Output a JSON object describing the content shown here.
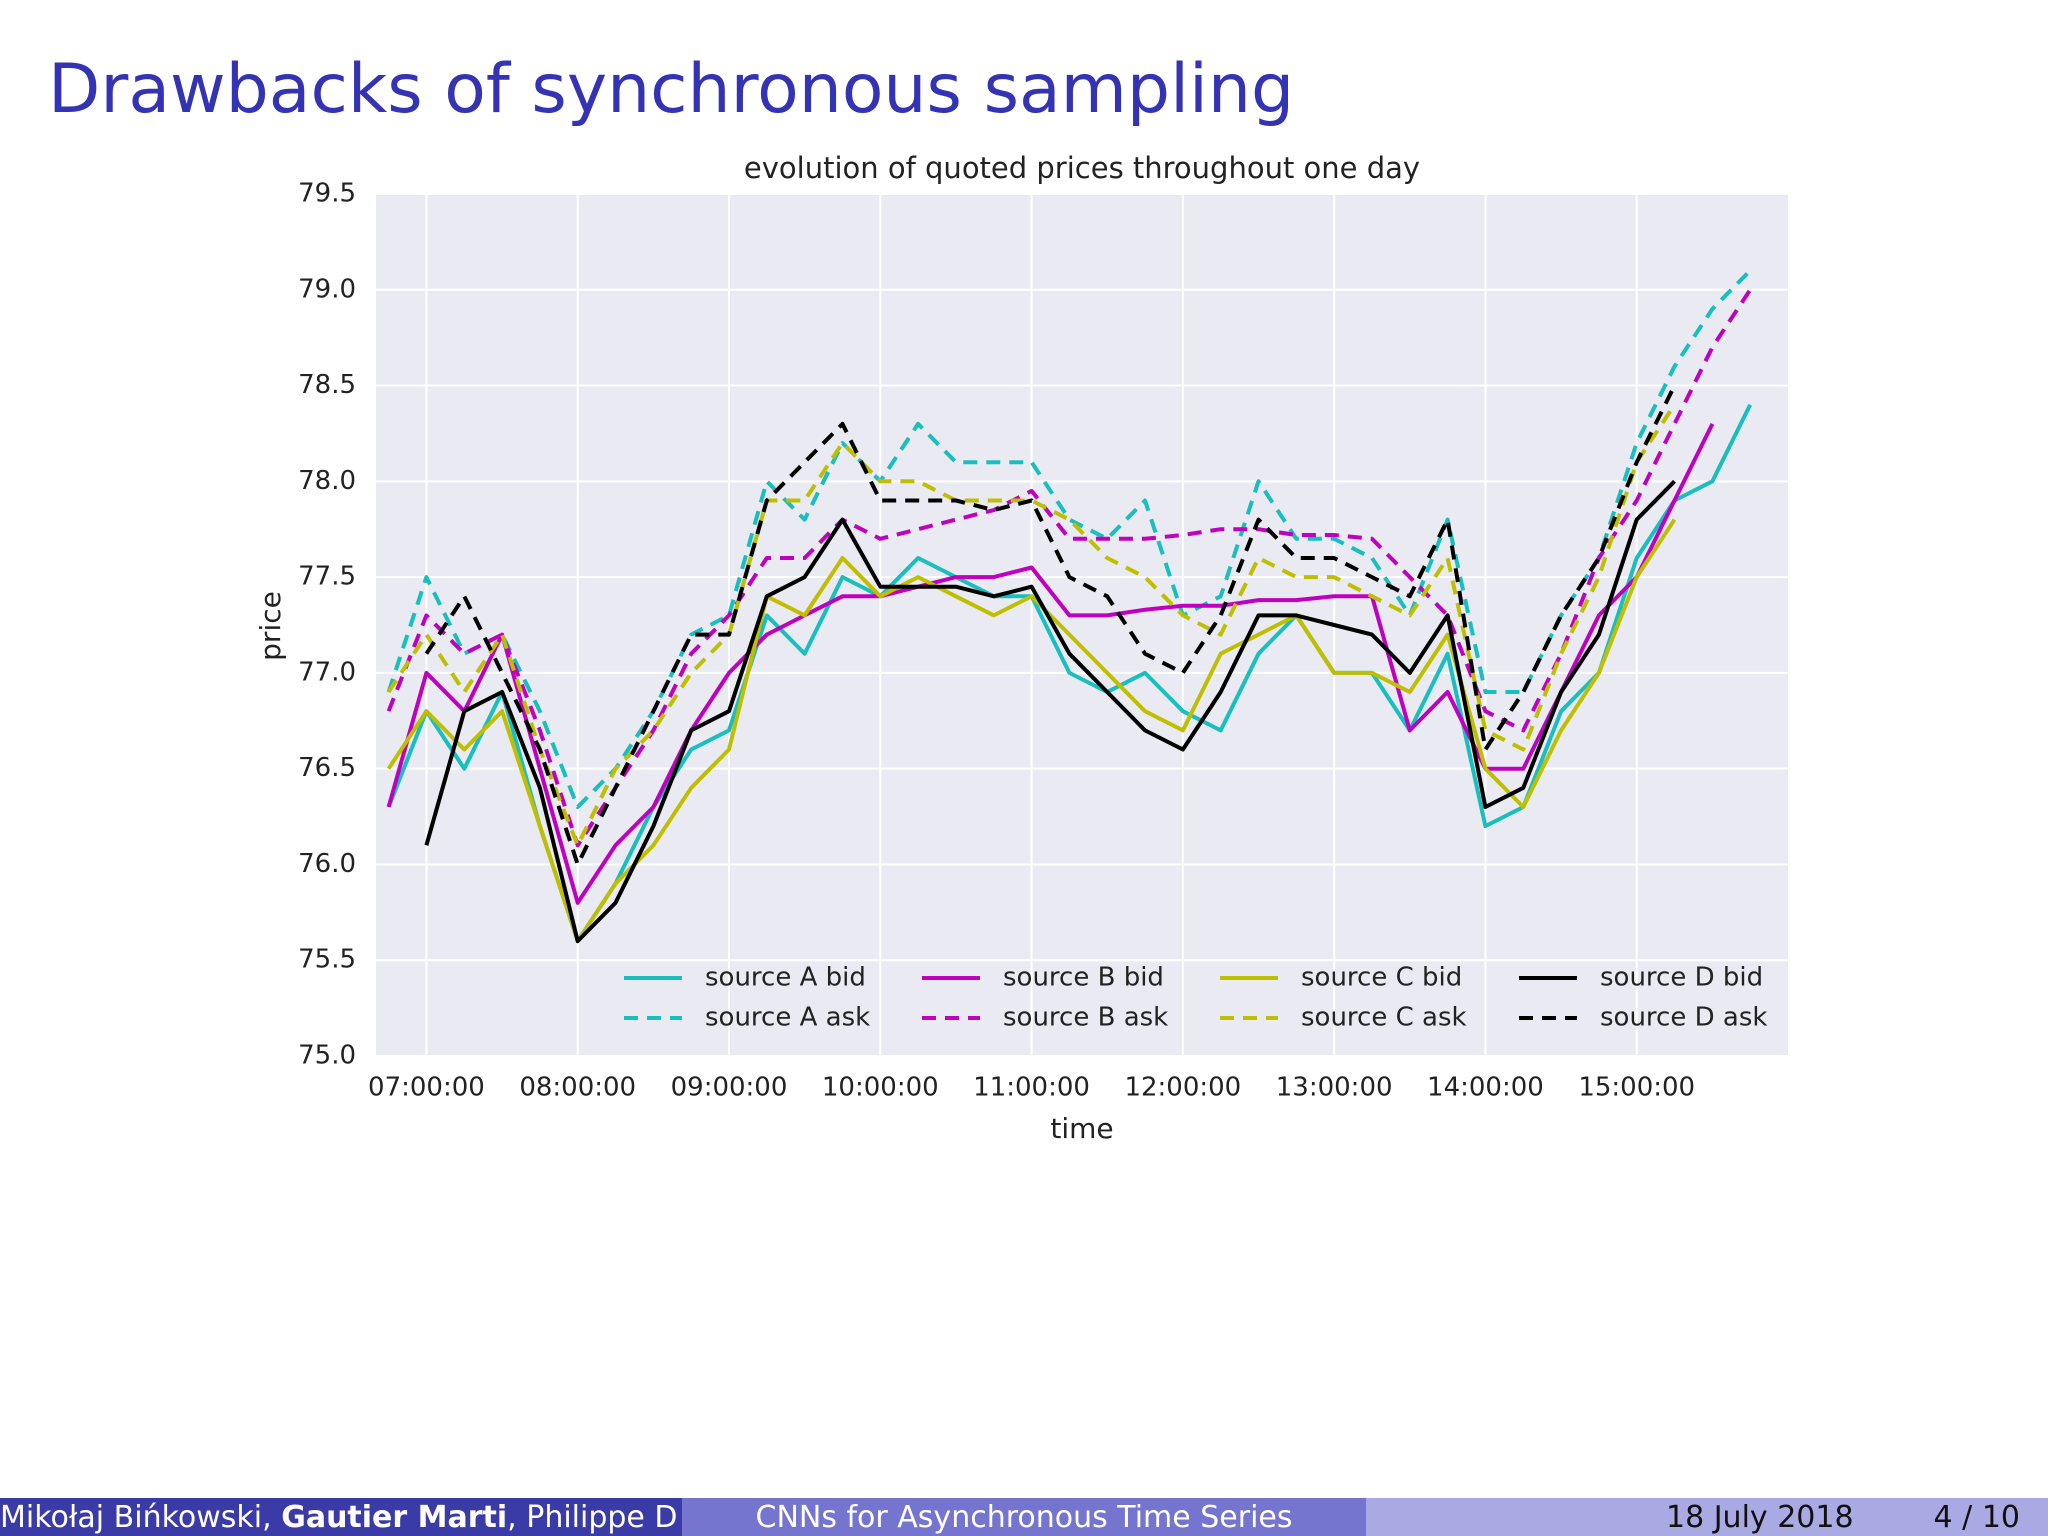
{
  "slide_title": "Drawbacks of synchronous sampling",
  "footer": {
    "authors": [
      "Mikołaj Bińkowski, ",
      "Gautier Marti",
      ", Philippe D"
    ],
    "talk": "CNNs for Asynchronous Time Series",
    "date": "18 July 2018",
    "page": "4 / 10"
  },
  "chart_data": {
    "type": "line",
    "title": "evolution of quoted prices throughout one day",
    "x_label": "time",
    "y_label": "price",
    "x": [
      "06:45:00",
      "07:00:00",
      "07:15:00",
      "07:30:00",
      "07:45:00",
      "08:00:00",
      "08:15:00",
      "08:30:00",
      "08:45:00",
      "09:00:00",
      "09:15:00",
      "09:30:00",
      "09:45:00",
      "10:00:00",
      "10:15:00",
      "10:30:00",
      "10:45:00",
      "11:00:00",
      "11:15:00",
      "11:30:00",
      "11:45:00",
      "12:00:00",
      "12:15:00",
      "12:30:00",
      "12:45:00",
      "13:00:00",
      "13:15:00",
      "13:30:00",
      "13:45:00",
      "14:00:00",
      "14:15:00",
      "14:30:00",
      "14:45:00",
      "15:00:00",
      "15:15:00",
      "15:30:00",
      "15:45:00"
    ],
    "xlim": [
      "06:40:00",
      "16:00:00"
    ],
    "xticks": [
      "07:00:00",
      "08:00:00",
      "09:00:00",
      "10:00:00",
      "11:00:00",
      "12:00:00",
      "13:00:00",
      "14:00:00",
      "15:00:00"
    ],
    "ylim": [
      75,
      79.5
    ],
    "yticks": [
      {
        "value": 75,
        "label": "75.0"
      },
      75.5,
      {
        "value": 76,
        "label": "76.0"
      },
      76.5,
      {
        "value": 77,
        "label": "77.0"
      },
      77.5,
      {
        "value": 78,
        "label": "78.0"
      },
      78.5,
      {
        "value": 79,
        "label": "79.0"
      },
      79.5
    ],
    "grid": true,
    "legend": "lower right",
    "series": [
      {
        "name": "source A bid",
        "color": "#17bfbf",
        "dashed": false,
        "values": [
          76.3,
          76.8,
          76.5,
          76.9,
          76.2,
          75.6,
          75.9,
          76.3,
          76.6,
          76.7,
          77.3,
          77.1,
          77.5,
          77.4,
          77.6,
          77.5,
          77.4,
          77.4,
          77.0,
          76.9,
          77.0,
          76.8,
          76.7,
          77.1,
          77.3,
          77.0,
          77.0,
          76.7,
          77.1,
          76.2,
          76.3,
          76.8,
          77.0,
          77.6,
          77.9,
          78.0,
          78.4
        ]
      },
      {
        "name": "source A ask",
        "color": "#17bfbf",
        "dashed": true,
        "values": [
          76.9,
          77.5,
          77.1,
          77.2,
          76.8,
          76.3,
          76.5,
          76.8,
          77.2,
          77.3,
          78.0,
          77.8,
          78.2,
          78.0,
          78.3,
          78.1,
          78.1,
          78.1,
          77.8,
          77.7,
          77.9,
          77.3,
          77.4,
          78.0,
          77.7,
          77.7,
          77.6,
          77.3,
          77.8,
          76.9,
          76.9,
          77.3,
          77.6,
          78.2,
          78.6,
          78.9,
          79.1
        ]
      },
      {
        "name": "source B bid",
        "color": "#bf00bf",
        "dashed": false,
        "values": [
          76.3,
          77.0,
          76.8,
          77.2,
          76.5,
          75.8,
          76.1,
          76.3,
          76.7,
          77.0,
          77.2,
          77.3,
          77.4,
          77.4,
          77.45,
          77.5,
          77.5,
          77.55,
          77.3,
          77.3,
          77.33,
          77.35,
          77.35,
          77.38,
          77.38,
          77.4,
          77.4,
          76.7,
          76.9,
          76.5,
          76.5,
          76.9,
          77.3,
          77.5,
          77.9,
          78.3,
          null
        ]
      },
      {
        "name": "source B ask",
        "color": "#bf00bf",
        "dashed": true,
        "values": [
          76.8,
          77.3,
          77.1,
          77.2,
          76.7,
          76.1,
          76.4,
          76.7,
          77.1,
          77.3,
          77.6,
          77.6,
          77.8,
          77.7,
          77.75,
          77.8,
          77.85,
          77.95,
          77.7,
          77.7,
          77.7,
          77.72,
          77.75,
          77.75,
          77.72,
          77.72,
          77.7,
          77.5,
          77.3,
          76.8,
          76.7,
          77.1,
          77.6,
          77.9,
          78.3,
          78.7,
          79.0
        ]
      },
      {
        "name": "source C bid",
        "color": "#bfbf00",
        "dashed": false,
        "values": [
          76.5,
          76.8,
          76.6,
          76.8,
          76.2,
          75.6,
          75.9,
          76.1,
          76.4,
          76.6,
          77.4,
          77.3,
          77.6,
          77.4,
          77.5,
          77.4,
          77.3,
          77.4,
          77.2,
          77.0,
          76.8,
          76.7,
          77.1,
          77.2,
          77.3,
          77.0,
          77.0,
          76.9,
          77.2,
          76.5,
          76.3,
          76.7,
          77.0,
          77.5,
          77.8,
          null,
          null
        ]
      },
      {
        "name": "source C ask",
        "color": "#bfbf00",
        "dashed": true,
        "values": [
          76.9,
          77.2,
          76.9,
          77.2,
          76.6,
          76.1,
          76.5,
          76.7,
          77.0,
          77.2,
          77.9,
          77.9,
          78.2,
          78.0,
          78.0,
          77.9,
          77.9,
          77.9,
          77.8,
          77.6,
          77.5,
          77.3,
          77.2,
          77.6,
          77.5,
          77.5,
          77.4,
          77.3,
          77.6,
          76.7,
          76.6,
          77.1,
          77.5,
          78.1,
          78.4,
          null,
          null
        ]
      },
      {
        "name": "source D bid",
        "color": "#000000",
        "dashed": false,
        "values": [
          null,
          76.1,
          76.8,
          76.9,
          76.4,
          75.6,
          75.8,
          76.2,
          76.7,
          76.8,
          77.4,
          77.5,
          77.8,
          77.45,
          77.45,
          77.45,
          77.4,
          77.45,
          77.1,
          76.9,
          76.7,
          76.6,
          76.9,
          77.3,
          77.3,
          77.25,
          77.2,
          77.0,
          77.3,
          76.3,
          76.4,
          76.9,
          77.2,
          77.8,
          78.0,
          null,
          null
        ]
      },
      {
        "name": "source D ask",
        "color": "#000000",
        "dashed": true,
        "values": [
          null,
          77.1,
          77.4,
          77.0,
          76.6,
          76.0,
          76.4,
          76.8,
          77.2,
          77.2,
          77.9,
          78.1,
          78.3,
          77.9,
          77.9,
          77.9,
          77.85,
          77.9,
          77.5,
          77.4,
          77.1,
          77.0,
          77.3,
          77.8,
          77.6,
          77.6,
          77.5,
          77.4,
          77.8,
          76.6,
          76.9,
          77.3,
          77.6,
          78.1,
          78.5,
          null,
          null
        ]
      }
    ]
  }
}
